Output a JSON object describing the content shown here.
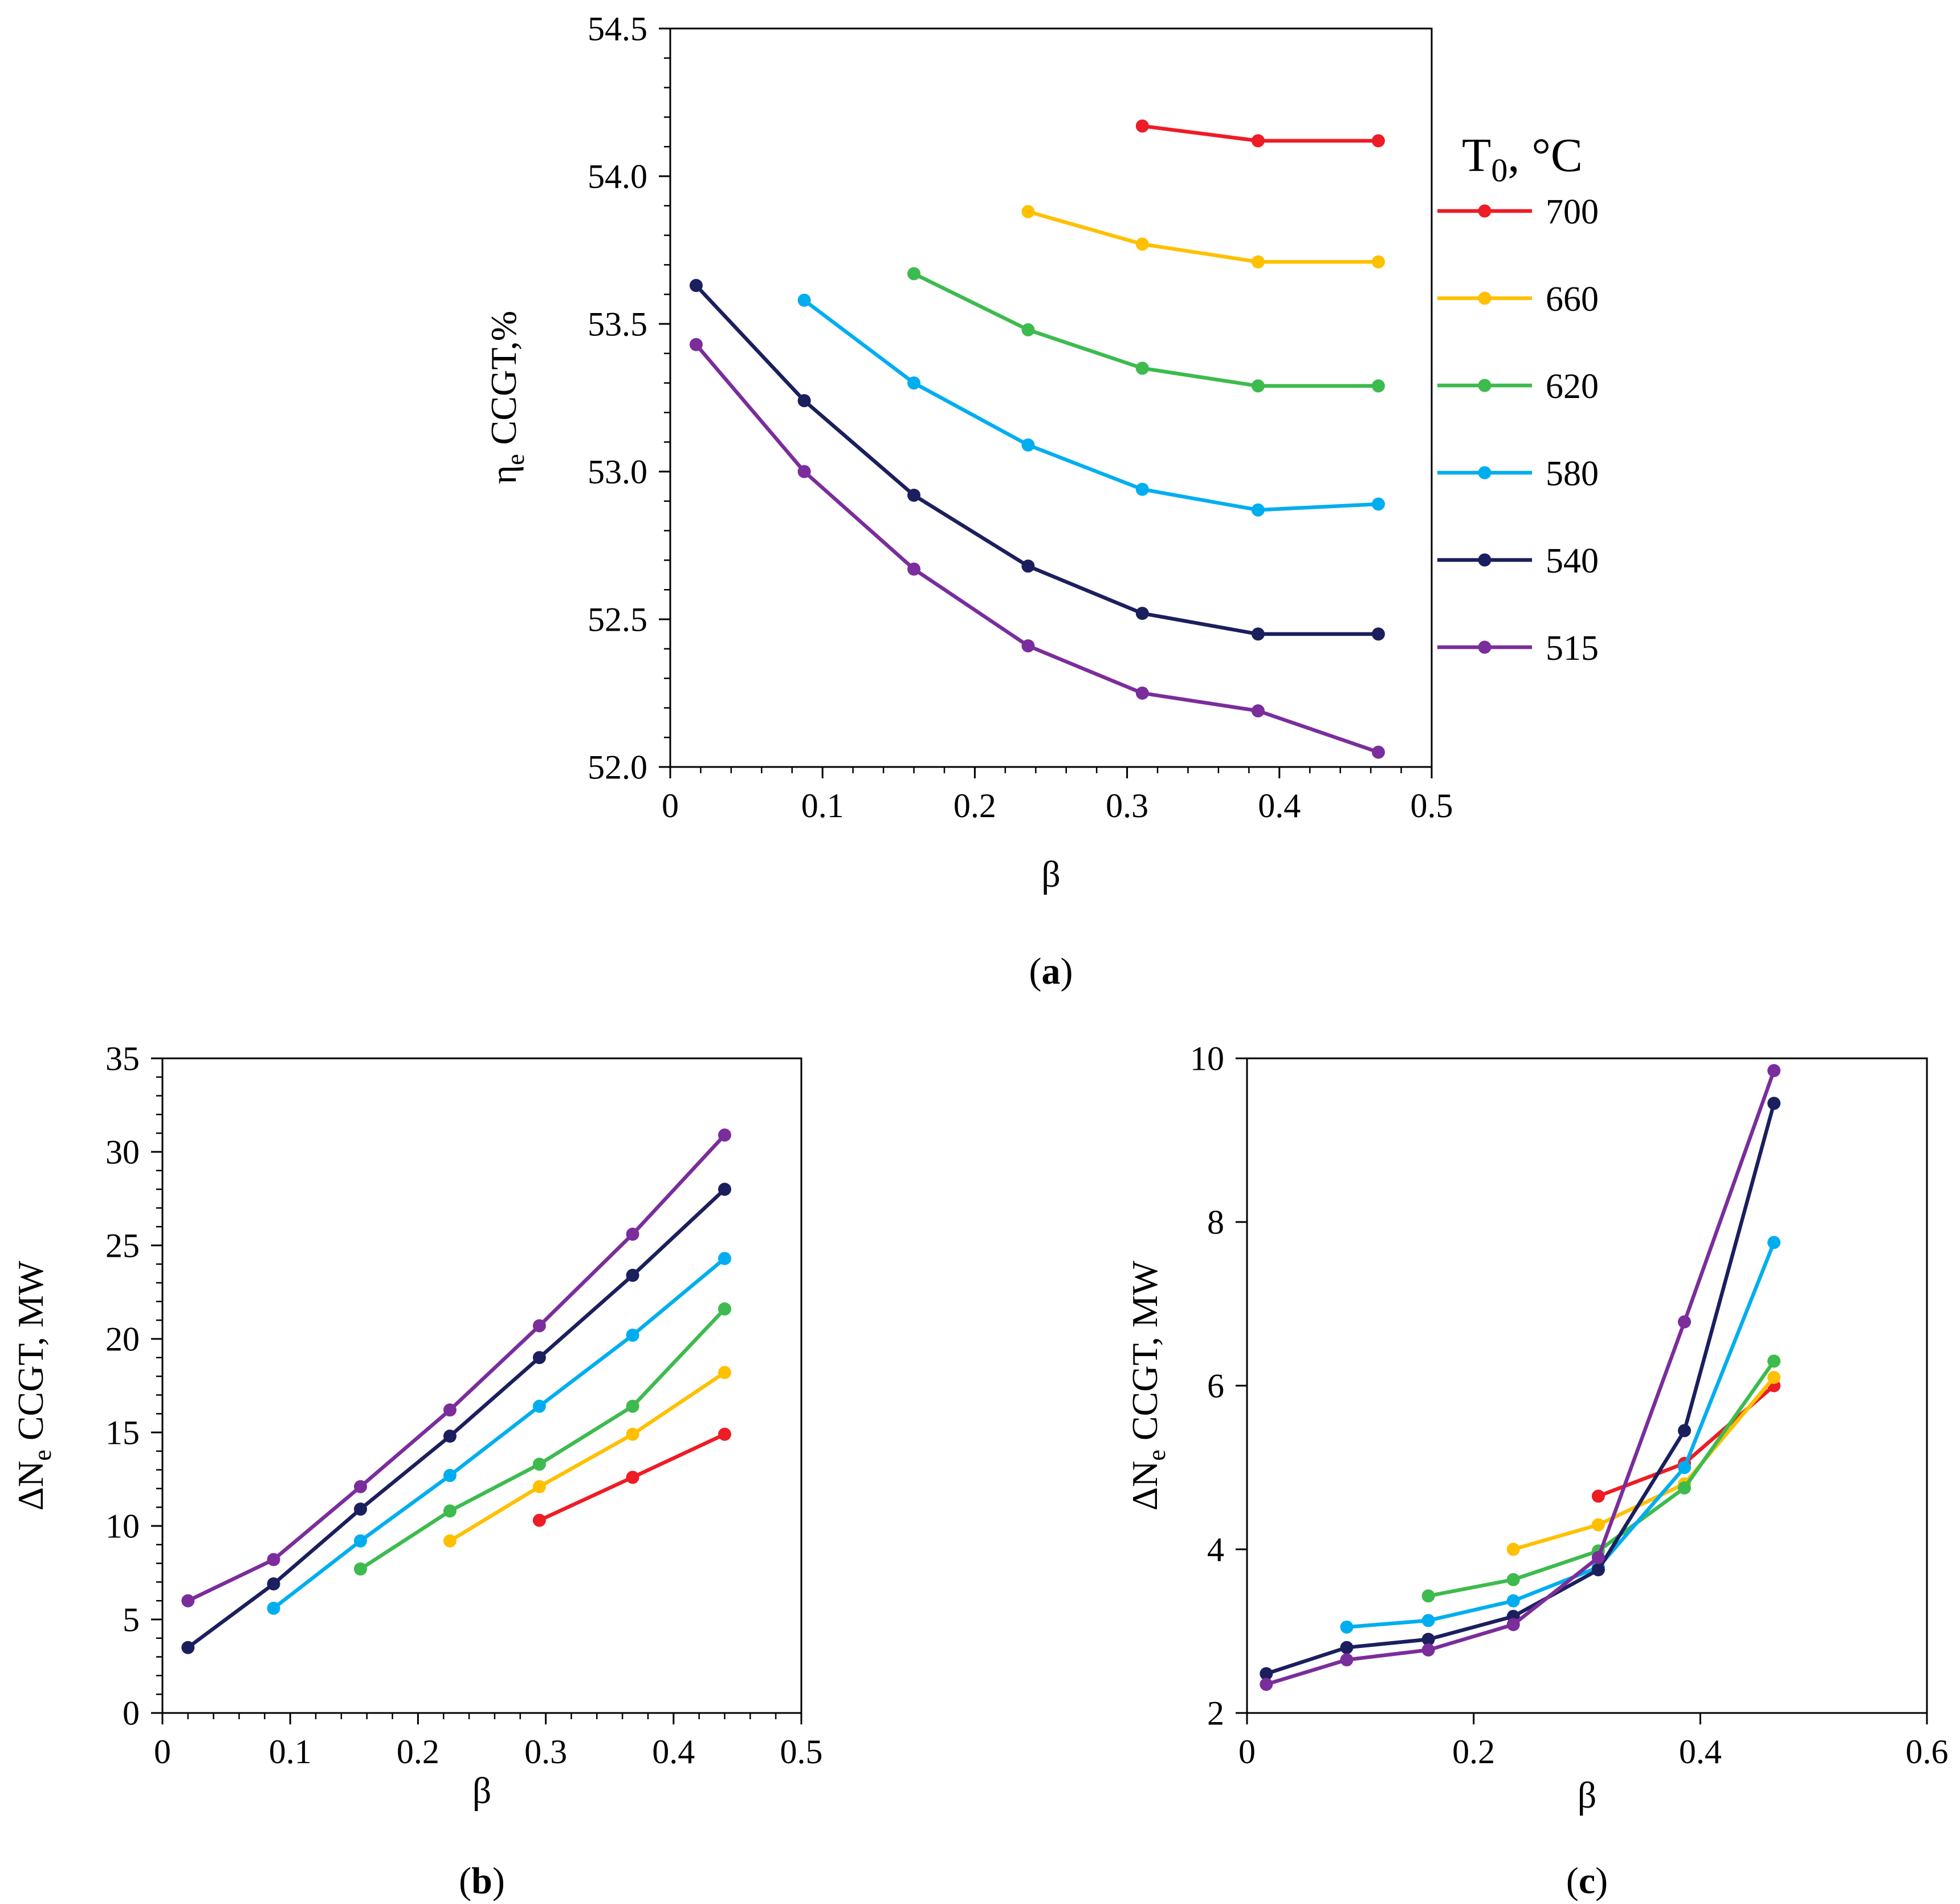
{
  "legend": {
    "title": "T",
    "title_sub": "0",
    "title_unit": ", °C",
    "entries": [
      {
        "label": "700",
        "color": "#ee1c25"
      },
      {
        "label": "660",
        "color": "#ffc000"
      },
      {
        "label": "620",
        "color": "#3dbb4e"
      },
      {
        "label": "580",
        "color": "#00aeef"
      },
      {
        "label": "540",
        "color": "#1b1f5e"
      },
      {
        "label": "515",
        "color": "#7b2d9b"
      }
    ]
  },
  "chart_data": [
    {
      "panel": "(a)",
      "panel_letter": "a",
      "type": "line",
      "ylabel_main": "η",
      "ylabel_sub": "e",
      "ylabel_rest": " CCGT,%",
      "xlabel": "β",
      "xlim": [
        0,
        0.5
      ],
      "ylim": [
        52.0,
        54.5
      ],
      "xticks": [
        {
          "v": 0,
          "t": "0"
        },
        {
          "v": 0.1,
          "t": "0.1"
        },
        {
          "v": 0.2,
          "t": "0.2"
        },
        {
          "v": 0.3,
          "t": "0.3"
        },
        {
          "v": 0.4,
          "t": "0.4"
        },
        {
          "v": 0.5,
          "t": "0.5"
        }
      ],
      "yticks": [
        {
          "v": 52.0,
          "t": "52.0"
        },
        {
          "v": 52.5,
          "t": "52.5"
        },
        {
          "v": 53.0,
          "t": "53.0"
        },
        {
          "v": 53.5,
          "t": "53.5"
        },
        {
          "v": 54.0,
          "t": "54.0"
        },
        {
          "v": 54.5,
          "t": "54.5"
        }
      ],
      "x_minor_step": 0.02,
      "y_minor_step": 0.1,
      "series": [
        {
          "name": "700",
          "color": "#ee1c25",
          "points": [
            [
              0.31,
              54.17
            ],
            [
              0.386,
              54.12
            ],
            [
              0.465,
              54.12
            ]
          ]
        },
        {
          "name": "660",
          "color": "#ffc000",
          "points": [
            [
              0.235,
              53.88
            ],
            [
              0.31,
              53.77
            ],
            [
              0.386,
              53.71
            ],
            [
              0.465,
              53.71
            ]
          ]
        },
        {
          "name": "620",
          "color": "#3dbb4e",
          "points": [
            [
              0.16,
              53.67
            ],
            [
              0.235,
              53.48
            ],
            [
              0.31,
              53.35
            ],
            [
              0.386,
              53.29
            ],
            [
              0.465,
              53.29
            ]
          ]
        },
        {
          "name": "580",
          "color": "#00aeef",
          "points": [
            [
              0.088,
              53.58
            ],
            [
              0.16,
              53.3
            ],
            [
              0.235,
              53.09
            ],
            [
              0.31,
              52.94
            ],
            [
              0.386,
              52.87
            ],
            [
              0.465,
              52.89
            ]
          ]
        },
        {
          "name": "540",
          "color": "#1b1f5e",
          "points": [
            [
              0.017,
              53.63
            ],
            [
              0.088,
              53.24
            ],
            [
              0.16,
              52.92
            ],
            [
              0.235,
              52.68
            ],
            [
              0.31,
              52.52
            ],
            [
              0.386,
              52.45
            ],
            [
              0.465,
              52.45
            ]
          ]
        },
        {
          "name": "515",
          "color": "#7b2d9b",
          "points": [
            [
              0.017,
              53.43
            ],
            [
              0.088,
              53.0
            ],
            [
              0.16,
              52.67
            ],
            [
              0.235,
              52.41
            ],
            [
              0.31,
              52.25
            ],
            [
              0.386,
              52.19
            ],
            [
              0.465,
              52.05
            ]
          ]
        }
      ]
    },
    {
      "panel": "(b)",
      "panel_letter": "b",
      "type": "line",
      "ylabel_main": "ΔN",
      "ylabel_sub": "e",
      "ylabel_rest": " CCGT, MW",
      "xlabel": "β",
      "xlim": [
        0,
        0.5
      ],
      "ylim": [
        0,
        35
      ],
      "xticks": [
        {
          "v": 0,
          "t": "0"
        },
        {
          "v": 0.1,
          "t": "0.1"
        },
        {
          "v": 0.2,
          "t": "0.2"
        },
        {
          "v": 0.3,
          "t": "0.3"
        },
        {
          "v": 0.4,
          "t": "0.4"
        },
        {
          "v": 0.5,
          "t": "0.5"
        }
      ],
      "yticks": [
        {
          "v": 0,
          "t": "0"
        },
        {
          "v": 5,
          "t": "5"
        },
        {
          "v": 10,
          "t": "10"
        },
        {
          "v": 15,
          "t": "15"
        },
        {
          "v": 20,
          "t": "20"
        },
        {
          "v": 25,
          "t": "25"
        },
        {
          "v": 30,
          "t": "30"
        },
        {
          "v": 35,
          "t": "35"
        }
      ],
      "x_minor_step": 0.02,
      "y_minor_step": 1,
      "series": [
        {
          "name": "700",
          "color": "#ee1c25",
          "points": [
            [
              0.295,
              10.3
            ],
            [
              0.368,
              12.6
            ],
            [
              0.44,
              14.9
            ]
          ]
        },
        {
          "name": "660",
          "color": "#ffc000",
          "points": [
            [
              0.225,
              9.2
            ],
            [
              0.295,
              12.1
            ],
            [
              0.368,
              14.9
            ],
            [
              0.44,
              18.2
            ]
          ]
        },
        {
          "name": "620",
          "color": "#3dbb4e",
          "points": [
            [
              0.155,
              7.7
            ],
            [
              0.225,
              10.8
            ],
            [
              0.295,
              13.3
            ],
            [
              0.368,
              16.4
            ],
            [
              0.44,
              21.6
            ]
          ]
        },
        {
          "name": "580",
          "color": "#00aeef",
          "points": [
            [
              0.087,
              5.6
            ],
            [
              0.155,
              9.2
            ],
            [
              0.225,
              12.7
            ],
            [
              0.295,
              16.4
            ],
            [
              0.368,
              20.2
            ],
            [
              0.44,
              24.3
            ]
          ]
        },
        {
          "name": "540",
          "color": "#1b1f5e",
          "points": [
            [
              0.02,
              3.5
            ],
            [
              0.087,
              6.9
            ],
            [
              0.155,
              10.9
            ],
            [
              0.225,
              14.8
            ],
            [
              0.295,
              19.0
            ],
            [
              0.368,
              23.4
            ],
            [
              0.44,
              28.0
            ]
          ]
        },
        {
          "name": "515",
          "color": "#7b2d9b",
          "points": [
            [
              0.02,
              6.0
            ],
            [
              0.087,
              8.2
            ],
            [
              0.155,
              12.1
            ],
            [
              0.225,
              16.2
            ],
            [
              0.295,
              20.7
            ],
            [
              0.368,
              25.6
            ],
            [
              0.44,
              30.9
            ]
          ]
        }
      ]
    },
    {
      "panel": "(c)",
      "panel_letter": "c",
      "type": "line",
      "ylabel_main": "ΔN",
      "ylabel_sub": "e",
      "ylabel_rest": " CCGT, MW",
      "xlabel": "β",
      "xlim": [
        0,
        0.6
      ],
      "ylim": [
        2,
        10
      ],
      "xticks": [
        {
          "v": 0,
          "t": "0"
        },
        {
          "v": 0.2,
          "t": "0.2"
        },
        {
          "v": 0.4,
          "t": "0.4"
        },
        {
          "v": 0.6,
          "t": "0.6"
        }
      ],
      "yticks": [
        {
          "v": 2,
          "t": "2"
        },
        {
          "v": 4,
          "t": "4"
        },
        {
          "v": 6,
          "t": "6"
        },
        {
          "v": 8,
          "t": "8"
        },
        {
          "v": 10,
          "t": "10"
        }
      ],
      "x_minor_step": 0.1,
      "y_minor_step": 0,
      "series": [
        {
          "name": "700",
          "color": "#ee1c25",
          "points": [
            [
              0.31,
              4.65
            ],
            [
              0.386,
              5.05
            ],
            [
              0.465,
              6.0
            ]
          ]
        },
        {
          "name": "660",
          "color": "#ffc000",
          "points": [
            [
              0.235,
              4.0
            ],
            [
              0.31,
              4.3
            ],
            [
              0.386,
              4.8
            ],
            [
              0.465,
              6.1
            ]
          ]
        },
        {
          "name": "620",
          "color": "#3dbb4e",
          "points": [
            [
              0.16,
              3.43
            ],
            [
              0.235,
              3.63
            ],
            [
              0.31,
              3.98
            ],
            [
              0.386,
              4.75
            ],
            [
              0.465,
              6.3
            ]
          ]
        },
        {
          "name": "580",
          "color": "#00aeef",
          "points": [
            [
              0.088,
              3.05
            ],
            [
              0.16,
              3.13
            ],
            [
              0.235,
              3.37
            ],
            [
              0.31,
              3.78
            ],
            [
              0.386,
              5.0
            ],
            [
              0.465,
              7.75
            ]
          ]
        },
        {
          "name": "540",
          "color": "#1b1f5e",
          "points": [
            [
              0.017,
              2.48
            ],
            [
              0.088,
              2.8
            ],
            [
              0.16,
              2.9
            ],
            [
              0.235,
              3.18
            ],
            [
              0.31,
              3.75
            ],
            [
              0.386,
              5.45
            ],
            [
              0.465,
              9.45
            ]
          ]
        },
        {
          "name": "515",
          "color": "#7b2d9b",
          "points": [
            [
              0.017,
              2.35
            ],
            [
              0.088,
              2.65
            ],
            [
              0.16,
              2.77
            ],
            [
              0.235,
              3.08
            ],
            [
              0.31,
              3.9
            ],
            [
              0.386,
              6.78
            ],
            [
              0.465,
              9.85
            ]
          ]
        }
      ]
    }
  ]
}
